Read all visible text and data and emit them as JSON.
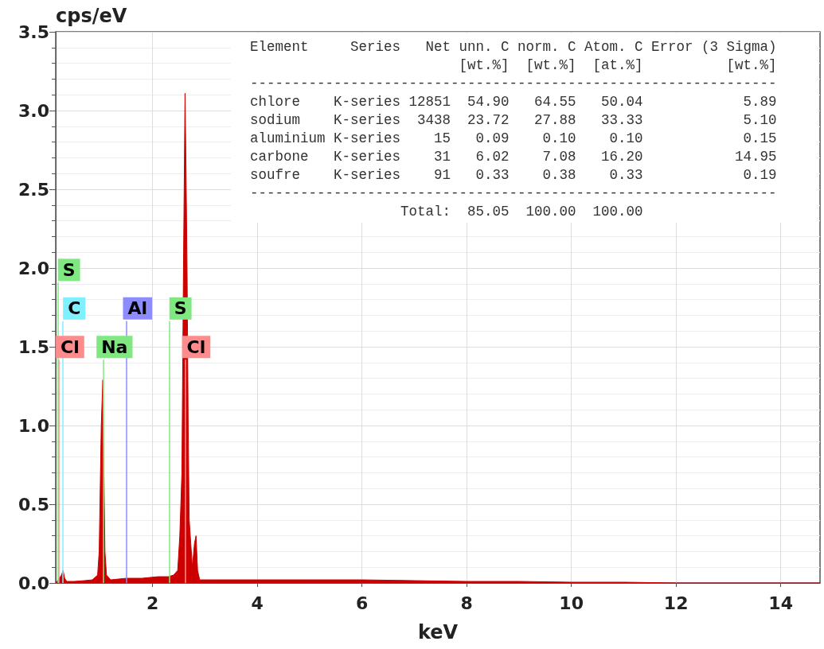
{
  "chart_data": {
    "type": "area",
    "xlabel": "keV",
    "ylabel": "cps/eV",
    "x": [
      0.15,
      0.2,
      0.26,
      0.29,
      0.32,
      0.36,
      0.5,
      0.7,
      0.85,
      0.95,
      0.98,
      1.0,
      1.02,
      1.05,
      1.07,
      1.09,
      1.12,
      1.2,
      1.5,
      1.8,
      2.1,
      2.3,
      2.4,
      2.48,
      2.52,
      2.56,
      2.59,
      2.62,
      2.64,
      2.66,
      2.68,
      2.7,
      2.73,
      2.76,
      2.8,
      2.83,
      2.86,
      2.9,
      3.2,
      4,
      5,
      6,
      7,
      8,
      9,
      10,
      11,
      12,
      14.75
    ],
    "series": [
      {
        "color": "#cc0000",
        "values": [
          0,
          0.02,
          0.05,
          0.08,
          0.03,
          0.01,
          0.01,
          0.015,
          0.02,
          0.05,
          0.2,
          0.6,
          1.0,
          1.29,
          0.7,
          0.2,
          0.05,
          0.02,
          0.03,
          0.03,
          0.04,
          0.04,
          0.05,
          0.08,
          0.3,
          0.7,
          2.0,
          3.11,
          2.6,
          1.95,
          1.0,
          0.4,
          0.25,
          0.1,
          0.25,
          0.3,
          0.08,
          0.02,
          0.02,
          0.02,
          0.02,
          0.02,
          0.015,
          0.01,
          0.01,
          0.005,
          0.005,
          0,
          0
        ]
      }
    ],
    "xlim": [
      0.15,
      14.75
    ],
    "xticks": [
      2,
      4,
      6,
      8,
      10,
      12,
      14
    ],
    "ylim": [
      0,
      3.5
    ],
    "yticks": [
      {
        "value": 0,
        "label": "0.0"
      },
      0.5,
      {
        "value": 1,
        "label": "1.0"
      },
      1.5,
      {
        "value": 2,
        "label": "2.0"
      },
      2.5,
      {
        "value": 3,
        "label": "3.0"
      },
      3.5
    ],
    "grid": true,
    "ref_lines": [
      {
        "axis": "x",
        "value": 0.21,
        "label": "Cl",
        "color": "#ff8c8c"
      },
      {
        "axis": "x",
        "value": 0.29,
        "label": "C",
        "color": "#80f0ff"
      },
      {
        "axis": "x",
        "value": 0.19,
        "label": "S",
        "color": "#80e880"
      },
      {
        "axis": "x",
        "value": 1.06,
        "label": "Na",
        "color": "#80e880"
      },
      {
        "axis": "x",
        "value": 1.5,
        "label": "Al",
        "color": "#8c8cff"
      },
      {
        "axis": "x",
        "value": 2.62,
        "label": "Cl",
        "color": "#ff8c8c"
      },
      {
        "axis": "x",
        "value": 2.32,
        "label": "S",
        "color": "#80e880"
      }
    ],
    "annotations": [
      "Element     Series   Net unn. C norm. C Atom. C Error (3 Sigma)",
      "                         [wt.%]  [wt.%]  [at.%]          [wt.%]",
      "---------------------------------------------------------------",
      "chlore    K-series 12851  54.90   64.55   50.04            5.89",
      "sodium    K-series  3438  23.72   27.88   33.33            5.10",
      "aluminium K-series    15   0.09    0.10    0.10            0.15",
      "carbone   K-series    31   6.02    7.08   16.20           14.95",
      "soufre    K-series    91   0.33    0.38    0.33            0.19",
      "---------------------------------------------------------------",
      "                  Total:  85.05  100.00  100.00"
    ]
  }
}
